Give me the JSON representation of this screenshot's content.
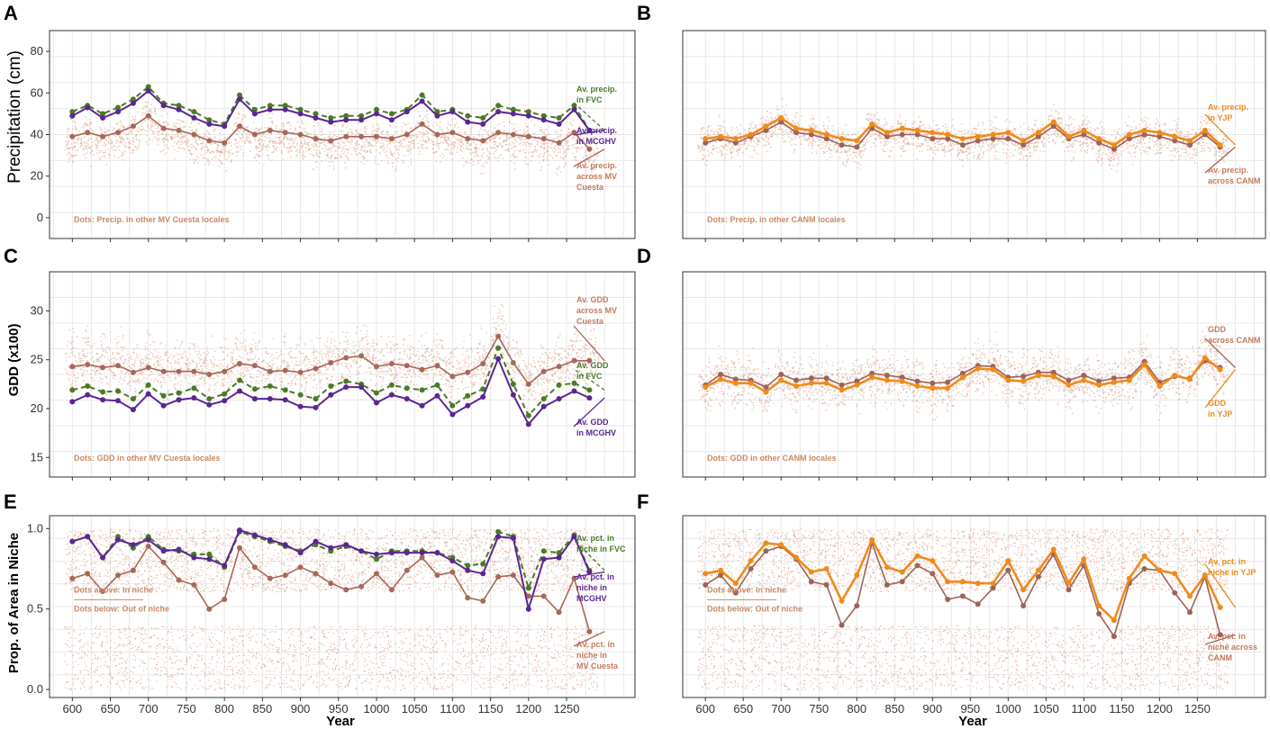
{
  "colors": {
    "fvc": "#4a7a26",
    "mcghv": "#5b2691",
    "cuesta": "#a86858",
    "dots": "#d9a089",
    "yjp": "#f08a1a",
    "canm": "#9e6358"
  },
  "x_axis": {
    "label": "Year",
    "tick_labels": [
      "600",
      "650",
      "700",
      "750",
      "800",
      "850",
      "900",
      "950",
      "1000",
      "1050",
      "1100",
      "1150",
      "1200",
      "1250"
    ]
  },
  "chart_data": [
    {
      "type": "line",
      "panel": "A",
      "ylabel": "Precipitation (cm)",
      "y_ticks": [
        "0",
        "20",
        "40",
        "60",
        "80"
      ],
      "ylim": [
        -10,
        90
      ],
      "x": [
        600,
        620,
        640,
        660,
        680,
        700,
        720,
        740,
        760,
        780,
        800,
        820,
        840,
        860,
        880,
        900,
        920,
        940,
        960,
        980,
        1000,
        1020,
        1040,
        1060,
        1080,
        1100,
        1120,
        1140,
        1160,
        1180,
        1200,
        1220,
        1240,
        1260,
        1280
      ],
      "series": [
        {
          "name": "Av. precip. in FVC",
          "values": [
            51,
            54,
            50,
            53,
            57,
            63,
            55,
            54,
            51,
            47,
            45,
            59,
            52,
            54,
            54,
            52,
            50,
            48,
            49,
            49,
            52,
            50,
            52,
            59,
            51,
            52,
            49,
            48,
            54,
            52,
            51,
            49,
            48,
            54,
            42
          ]
        },
        {
          "name": "Av. precip. in MCGHV",
          "values": [
            49,
            53,
            48,
            51,
            55,
            61,
            54,
            52,
            48,
            45,
            44,
            57,
            50,
            52,
            52,
            50,
            48,
            46,
            47,
            47,
            50,
            47,
            51,
            56,
            49,
            51,
            46,
            45,
            51,
            50,
            49,
            47,
            45,
            52,
            42
          ]
        },
        {
          "name": "Av. precip. across MV Cuesta",
          "values": [
            39,
            41,
            39,
            41,
            44,
            49,
            43,
            42,
            40,
            37,
            36,
            44,
            40,
            42,
            41,
            40,
            38,
            37,
            39,
            39,
            39,
            38,
            40,
            45,
            40,
            41,
            38,
            37,
            41,
            40,
            39,
            38,
            36,
            41,
            33
          ]
        }
      ],
      "dot_distribution": {
        "center_offset": -3,
        "spread": 14
      },
      "annotations": [
        "Av. precip.",
        "in FVC",
        "Av. precip.",
        "in MCGHV",
        "Av. precip.",
        "across MV",
        "Cuesta"
      ],
      "dots_note": "Dots: Precip. in other MV Cuesta locales"
    },
    {
      "type": "line",
      "panel": "B",
      "ylabel": "",
      "y_ticks": [],
      "ylim": [
        -10,
        90
      ],
      "x": [
        600,
        620,
        640,
        660,
        680,
        700,
        720,
        740,
        760,
        780,
        800,
        820,
        840,
        860,
        880,
        900,
        920,
        940,
        960,
        980,
        1000,
        1020,
        1040,
        1060,
        1080,
        1100,
        1120,
        1140,
        1160,
        1180,
        1200,
        1220,
        1240,
        1260,
        1280
      ],
      "series": [
        {
          "name": "Av. precip. in YJP",
          "values": [
            38,
            39,
            38,
            40,
            44,
            48,
            43,
            42,
            40,
            38,
            37,
            45,
            41,
            43,
            42,
            41,
            40,
            38,
            39,
            40,
            41,
            37,
            41,
            46,
            39,
            42,
            38,
            35,
            40,
            42,
            41,
            39,
            37,
            42,
            35
          ]
        },
        {
          "name": "Av. precip. across CANM",
          "values": [
            36,
            38,
            36,
            39,
            42,
            46,
            41,
            40,
            38,
            35,
            34,
            43,
            39,
            40,
            40,
            38,
            38,
            35,
            37,
            38,
            38,
            35,
            39,
            44,
            38,
            40,
            36,
            33,
            38,
            40,
            39,
            37,
            35,
            40,
            34
          ]
        }
      ],
      "dot_distribution": {
        "center_offset": 0,
        "spread": 13
      },
      "annotations": [
        "Av. precip.",
        "in YJP",
        "Av. precip.",
        "across CANM"
      ],
      "dots_note": "Dots: Precip. in other CANM locales"
    },
    {
      "type": "line",
      "panel": "C",
      "ylabel": "GDD (x100)",
      "y_ticks": [
        "15",
        "20",
        "25",
        "30"
      ],
      "ylim": [
        13,
        34
      ],
      "x": [
        600,
        620,
        640,
        660,
        680,
        700,
        720,
        740,
        760,
        780,
        800,
        820,
        840,
        860,
        880,
        900,
        920,
        940,
        960,
        980,
        1000,
        1020,
        1040,
        1060,
        1080,
        1100,
        1120,
        1140,
        1160,
        1180,
        1200,
        1220,
        1240,
        1260,
        1280
      ],
      "series": [
        {
          "name": "Av. GDD in FVC",
          "values": [
            21.9,
            22.3,
            21.7,
            21.8,
            21.0,
            22.4,
            21.3,
            21.6,
            22.1,
            21.0,
            21.5,
            22.9,
            22.0,
            22.3,
            21.9,
            21.4,
            21.0,
            22.3,
            22.8,
            22.5,
            21.6,
            22.4,
            22.1,
            21.9,
            22.4,
            20.3,
            21.3,
            22.0,
            26.2,
            22.5,
            19.3,
            21.0,
            22.4,
            22.6,
            21.9
          ]
        },
        {
          "name": "Av. GDD in MCGHV",
          "values": [
            20.7,
            21.4,
            20.9,
            20.8,
            19.9,
            21.5,
            20.3,
            20.9,
            21.1,
            20.4,
            20.8,
            21.8,
            21.0,
            21.0,
            20.9,
            20.2,
            20.1,
            21.4,
            22.2,
            22.2,
            20.6,
            21.4,
            21.0,
            20.3,
            21.3,
            19.4,
            20.3,
            21.2,
            25.1,
            21.4,
            18.4,
            20.2,
            21.0,
            21.8,
            21.1
          ]
        },
        {
          "name": "Av. GDD across MV Cuesta",
          "values": [
            24.3,
            24.5,
            24.2,
            24.4,
            23.7,
            24.2,
            23.8,
            23.8,
            23.8,
            23.5,
            23.8,
            24.6,
            24.4,
            23.8,
            23.9,
            23.7,
            24.1,
            24.7,
            25.2,
            25.4,
            24.3,
            24.6,
            24.4,
            24.0,
            24.4,
            23.3,
            23.7,
            24.6,
            27.4,
            24.7,
            22.5,
            23.8,
            24.3,
            24.9,
            24.9
          ]
        }
      ],
      "dot_distribution": {
        "center_offset": 0.3,
        "spread": 4.2
      },
      "annotations": [
        "Av. GDD",
        "across MV",
        "Cuesta",
        "Av. GDD",
        "in FVC",
        "Av. GDD",
        "in MCGHV"
      ],
      "dots_note": "Dots: GDD in other MV Cuesta locales"
    },
    {
      "type": "line",
      "panel": "D",
      "ylabel": "",
      "y_ticks": [],
      "ylim": [
        13,
        34
      ],
      "x": [
        600,
        620,
        640,
        660,
        680,
        700,
        720,
        740,
        760,
        780,
        800,
        820,
        840,
        860,
        880,
        900,
        920,
        940,
        960,
        980,
        1000,
        1020,
        1040,
        1060,
        1080,
        1100,
        1120,
        1140,
        1160,
        1180,
        1200,
        1220,
        1240,
        1260,
        1280
      ],
      "series": [
        {
          "name": "GDD across CANM",
          "values": [
            22.4,
            23.5,
            23.0,
            22.9,
            22.2,
            23.5,
            22.9,
            23.1,
            23.1,
            22.4,
            22.8,
            23.6,
            23.4,
            23.2,
            22.8,
            22.6,
            22.7,
            23.6,
            24.4,
            24.3,
            23.2,
            23.3,
            23.7,
            23.7,
            22.9,
            23.4,
            22.8,
            23.1,
            23.2,
            24.8,
            22.7,
            23.3,
            23.1,
            24.9,
            24.2
          ]
        },
        {
          "name": "GDD in YJP",
          "values": [
            22.2,
            23.0,
            22.6,
            22.6,
            21.7,
            22.9,
            22.3,
            22.6,
            22.6,
            21.9,
            22.4,
            23.2,
            22.9,
            22.8,
            22.3,
            22.1,
            22.1,
            23.2,
            24.1,
            24.0,
            22.9,
            22.8,
            23.4,
            23.3,
            22.4,
            22.9,
            22.4,
            22.7,
            22.9,
            24.5,
            22.3,
            23.4,
            23.0,
            25.2,
            24.0
          ]
        }
      ],
      "dot_distribution": {
        "center_offset": 0.2,
        "spread": 3.9
      },
      "annotations": [
        "GDD",
        "across CANM",
        "GDD",
        "in YJP"
      ],
      "dots_note": "Dots: GDD in other CANM locales"
    },
    {
      "type": "line",
      "panel": "E",
      "ylabel": "Prop. of Area in Niche",
      "y_ticks": [
        "0.0",
        "0.5",
        "1.0"
      ],
      "ylim": [
        -0.05,
        1.08
      ],
      "x": [
        600,
        620,
        640,
        660,
        680,
        700,
        720,
        740,
        760,
        780,
        800,
        820,
        840,
        860,
        880,
        900,
        920,
        940,
        960,
        980,
        1000,
        1020,
        1040,
        1060,
        1080,
        1100,
        1120,
        1140,
        1160,
        1180,
        1200,
        1220,
        1240,
        1260,
        1280
      ],
      "series": [
        {
          "name": "Av. pct. in niche in FVC",
          "values": [
            0.92,
            0.95,
            0.82,
            0.95,
            0.88,
            0.95,
            0.87,
            0.86,
            0.84,
            0.84,
            0.76,
            0.98,
            0.95,
            0.92,
            0.89,
            0.86,
            0.9,
            0.86,
            0.89,
            0.86,
            0.81,
            0.86,
            0.86,
            0.86,
            0.85,
            0.82,
            0.77,
            0.78,
            0.98,
            0.95,
            0.63,
            0.86,
            0.85,
            0.96,
            0.74
          ]
        },
        {
          "name": "Av. pct. in niche in MCGHV",
          "values": [
            0.92,
            0.95,
            0.82,
            0.93,
            0.9,
            0.93,
            0.86,
            0.87,
            0.82,
            0.81,
            0.77,
            0.99,
            0.96,
            0.93,
            0.9,
            0.85,
            0.92,
            0.88,
            0.9,
            0.86,
            0.84,
            0.85,
            0.85,
            0.85,
            0.85,
            0.8,
            0.74,
            0.72,
            0.95,
            0.94,
            0.5,
            0.81,
            0.82,
            0.95,
            0.73
          ]
        },
        {
          "name": "AV. pct. in niche in MV Cuesta",
          "values": [
            0.69,
            0.72,
            0.61,
            0.71,
            0.74,
            0.89,
            0.79,
            0.68,
            0.65,
            0.5,
            0.56,
            0.88,
            0.76,
            0.69,
            0.71,
            0.76,
            0.72,
            0.66,
            0.62,
            0.64,
            0.72,
            0.62,
            0.74,
            0.82,
            0.71,
            0.73,
            0.57,
            0.55,
            0.7,
            0.71,
            0.58,
            0.58,
            0.48,
            0.69,
            0.36
          ]
        }
      ],
      "dots_note_above": "Dots above: In niche",
      "dots_note_below": "Dots below: Out of niche",
      "annotations": [
        "Av. pct. in",
        "niche in FVC",
        "Av. pct. in",
        "niche in",
        "MCGHV",
        "AV. pct. in",
        "niche in",
        "MV Cuesta"
      ]
    },
    {
      "type": "line",
      "panel": "F",
      "ylabel": "",
      "y_ticks": [],
      "ylim": [
        -0.05,
        1.08
      ],
      "x": [
        600,
        620,
        640,
        660,
        680,
        700,
        720,
        740,
        760,
        780,
        800,
        820,
        840,
        860,
        880,
        900,
        920,
        940,
        960,
        980,
        1000,
        1020,
        1040,
        1060,
        1080,
        1100,
        1120,
        1140,
        1160,
        1180,
        1200,
        1220,
        1240,
        1260,
        1280
      ],
      "series": [
        {
          "name": "Av. pct. in niche in YJP",
          "values": [
            0.72,
            0.74,
            0.66,
            0.8,
            0.91,
            0.9,
            0.82,
            0.73,
            0.75,
            0.55,
            0.71,
            0.93,
            0.76,
            0.73,
            0.83,
            0.8,
            0.67,
            0.67,
            0.66,
            0.66,
            0.8,
            0.62,
            0.74,
            0.87,
            0.66,
            0.81,
            0.52,
            0.43,
            0.69,
            0.83,
            0.74,
            0.72,
            0.58,
            0.71,
            0.51
          ]
        },
        {
          "name": "Av. pct. in niche across CANM",
          "values": [
            0.65,
            0.71,
            0.6,
            0.75,
            0.86,
            0.89,
            0.81,
            0.67,
            0.65,
            0.4,
            0.52,
            0.91,
            0.65,
            0.67,
            0.77,
            0.72,
            0.56,
            0.58,
            0.53,
            0.63,
            0.74,
            0.52,
            0.7,
            0.84,
            0.62,
            0.77,
            0.47,
            0.33,
            0.66,
            0.75,
            0.74,
            0.6,
            0.48,
            0.7,
            0.34
          ]
        }
      ],
      "dots_note_above": "Dots above: In niche",
      "dots_note_below": "Dots below: Out of niche",
      "annotations": [
        "Av. pct. in",
        "niche in YJP",
        "Av. pct. in",
        "niche across",
        "CANM"
      ]
    }
  ]
}
